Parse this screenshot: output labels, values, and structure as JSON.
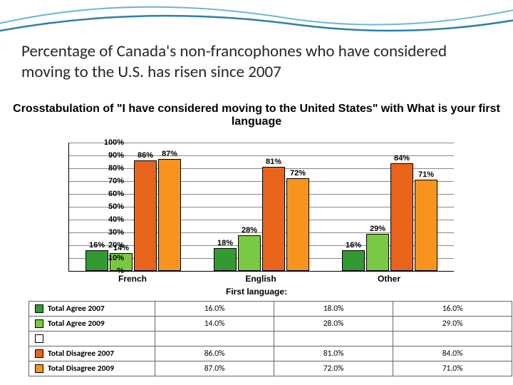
{
  "slide": {
    "title": "Percentage of Canada's non-francophones who have considered moving to the U.S. has risen since 2007"
  },
  "chart": {
    "type": "bar",
    "title": "Crosstabulation of \"I have considered moving to the United States\" with What is your first language",
    "xaxis_title": "First language:",
    "ylim": [
      0,
      100
    ],
    "ytick_step": 10,
    "ytick_suffix": "%",
    "gridline_color": "#888888",
    "background_color": "#ffffff",
    "categories": [
      "French",
      "English",
      "Other"
    ],
    "series": [
      {
        "name": "Total Agree 2007",
        "color": "#339933",
        "values": [
          16,
          18,
          16
        ]
      },
      {
        "name": "Total Agree 2009",
        "color": "#7AC943",
        "values": [
          14,
          28,
          29
        ]
      },
      {
        "name": "Total Disagree 2007",
        "color": "#E8641B",
        "values": [
          86,
          81,
          84
        ]
      },
      {
        "name": "Total Disagree 2009",
        "color": "#F7941E",
        "values": [
          87,
          72,
          71
        ]
      }
    ],
    "bar_labels": [
      [
        "16%",
        "14%",
        "86%",
        "87%"
      ],
      [
        "18%",
        "28%",
        "81%",
        "72%"
      ],
      [
        "16%",
        "29%",
        "84%",
        "71%"
      ]
    ]
  },
  "table": {
    "columns": [
      "",
      "French",
      "English",
      "Other"
    ],
    "rows": [
      {
        "swatch": "#339933",
        "label": "Total Agree 2007",
        "cells": [
          "16.0%",
          "18.0%",
          "16.0%"
        ]
      },
      {
        "swatch": "#7AC943",
        "label": "Total Agree 2009",
        "cells": [
          "14.0%",
          "28.0%",
          "29.0%"
        ]
      },
      {
        "swatch": "#ffffff",
        "label": "",
        "cells": [
          "",
          "",
          ""
        ]
      },
      {
        "swatch": "#E8641B",
        "label": "Total Disagree 2007",
        "cells": [
          "86.0%",
          "81.0%",
          "84.0%"
        ]
      },
      {
        "swatch": "#F7941E",
        "label": "Total Disagree 2009",
        "cells": [
          "87.0%",
          "72.0%",
          "71.0%"
        ]
      }
    ]
  },
  "swoosh": {
    "stroke1": "#6fb7d6",
    "stroke2": "#2d7fa8"
  }
}
